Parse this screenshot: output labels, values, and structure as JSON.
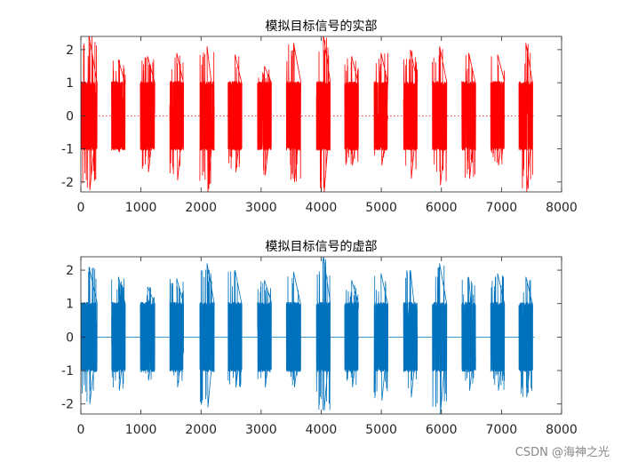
{
  "chart_data": [
    {
      "type": "line",
      "title": "模拟目标信号的实部",
      "xlim": [
        0,
        8000
      ],
      "ylim": [
        -2.3,
        2.4
      ],
      "xticks": [
        0,
        1000,
        2000,
        3000,
        4000,
        5000,
        6000,
        7000,
        8000
      ],
      "yticks": [
        -2,
        -1,
        0,
        1,
        2
      ],
      "grid": false,
      "series": [
        {
          "color": "#ff0000",
          "baseline": 0,
          "baseline_style": "dotted",
          "bursts": [
            {
              "start": 0,
              "end": 270,
              "max": 2.45,
              "min": -2.25
            },
            {
              "start": 510,
              "end": 740,
              "max": 1.7,
              "min": -1.1
            },
            {
              "start": 990,
              "end": 1230,
              "max": 1.8,
              "min": -1.7
            },
            {
              "start": 1480,
              "end": 1710,
              "max": 1.9,
              "min": -1.95
            },
            {
              "start": 1980,
              "end": 2220,
              "max": 2.1,
              "min": -2.3
            },
            {
              "start": 2450,
              "end": 2680,
              "max": 1.85,
              "min": -1.7
            },
            {
              "start": 2940,
              "end": 3170,
              "max": 1.5,
              "min": -1.8
            },
            {
              "start": 3420,
              "end": 3660,
              "max": 2.2,
              "min": -2.0
            },
            {
              "start": 3920,
              "end": 4150,
              "max": 2.45,
              "min": -2.3
            },
            {
              "start": 4390,
              "end": 4620,
              "max": 1.8,
              "min": -1.5
            },
            {
              "start": 4880,
              "end": 5110,
              "max": 1.9,
              "min": -1.5
            },
            {
              "start": 5370,
              "end": 5600,
              "max": 2.0,
              "min": -1.9
            },
            {
              "start": 5850,
              "end": 6090,
              "max": 2.1,
              "min": -2.1
            },
            {
              "start": 6340,
              "end": 6570,
              "max": 1.9,
              "min": -1.9
            },
            {
              "start": 6820,
              "end": 7050,
              "max": 1.85,
              "min": -1.5
            },
            {
              "start": 7290,
              "end": 7520,
              "max": 2.2,
              "min": -2.3
            }
          ]
        }
      ]
    },
    {
      "type": "line",
      "title": "模拟目标信号的虚部",
      "xlim": [
        0,
        8000
      ],
      "ylim": [
        -2.3,
        2.4
      ],
      "xticks": [
        0,
        1000,
        2000,
        3000,
        4000,
        5000,
        6000,
        7000,
        8000
      ],
      "yticks": [
        -2,
        -1,
        0,
        1,
        2
      ],
      "grid": false,
      "series": [
        {
          "color": "#0072bd",
          "baseline": 0,
          "baseline_style": "solid",
          "bursts": [
            {
              "start": 0,
              "end": 270,
              "max": 2.1,
              "min": -2.0
            },
            {
              "start": 510,
              "end": 740,
              "max": 1.8,
              "min": -1.6
            },
            {
              "start": 990,
              "end": 1230,
              "max": 1.5,
              "min": -1.3
            },
            {
              "start": 1480,
              "end": 1710,
              "max": 1.75,
              "min": -1.5
            },
            {
              "start": 1980,
              "end": 2220,
              "max": 2.2,
              "min": -2.1
            },
            {
              "start": 2450,
              "end": 2680,
              "max": 2.0,
              "min": -1.5
            },
            {
              "start": 2940,
              "end": 3170,
              "max": 1.7,
              "min": -1.5
            },
            {
              "start": 3420,
              "end": 3660,
              "max": 1.95,
              "min": -1.5
            },
            {
              "start": 3920,
              "end": 4150,
              "max": 2.45,
              "min": -2.2
            },
            {
              "start": 4390,
              "end": 4620,
              "max": 1.7,
              "min": -1.5
            },
            {
              "start": 4880,
              "end": 5110,
              "max": 1.9,
              "min": -1.9
            },
            {
              "start": 5370,
              "end": 5600,
              "max": 2.0,
              "min": -1.8
            },
            {
              "start": 5850,
              "end": 6090,
              "max": 2.2,
              "min": -2.3
            },
            {
              "start": 6340,
              "end": 6570,
              "max": 1.8,
              "min": -1.6
            },
            {
              "start": 6820,
              "end": 7050,
              "max": 1.9,
              "min": -1.6
            },
            {
              "start": 7290,
              "end": 7520,
              "max": 1.8,
              "min": -1.8
            }
          ]
        }
      ]
    }
  ],
  "watermark": "CSDN @海神之光"
}
